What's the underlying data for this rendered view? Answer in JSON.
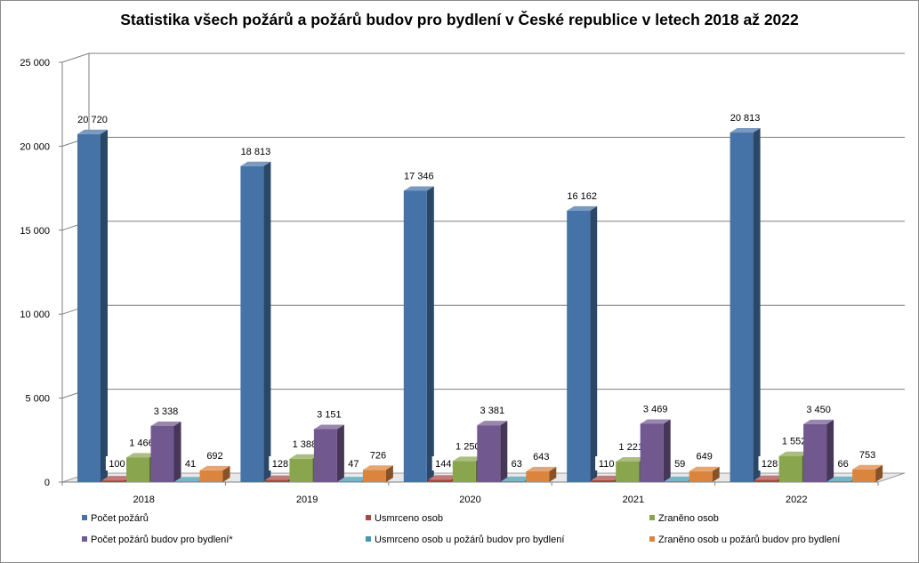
{
  "chart_data": {
    "type": "bar",
    "title": "Statistika všech požárů a požárů budov pro bydlení v České republice v letech 2018 až 2022",
    "xlabel": "",
    "ylabel": "",
    "ylim": [
      0,
      25000
    ],
    "yticks": [
      0,
      5000,
      10000,
      15000,
      20000,
      25000
    ],
    "ytick_labels": [
      "0",
      "5 000",
      "10 000",
      "15 000",
      "20 000",
      "25 000"
    ],
    "categories": [
      "2018",
      "2019",
      "2020",
      "2021",
      "2022"
    ],
    "grid": true,
    "legend_position": "bottom",
    "series": [
      {
        "name": "Počet požárů",
        "color": "#4572a7",
        "values": [
          20720,
          18813,
          17346,
          16162,
          20813
        ],
        "labels": [
          "20 720",
          "18 813",
          "17 346",
          "16 162",
          "20 813"
        ]
      },
      {
        "name": "Usmrceno osob",
        "color": "#aa4643",
        "values": [
          100,
          128,
          144,
          110,
          128
        ],
        "labels": [
          "100",
          "128",
          "144",
          "110",
          "128"
        ]
      },
      {
        "name": "Zraněno osob",
        "color": "#89a54e",
        "values": [
          1466,
          1388,
          1250,
          1221,
          1552
        ],
        "labels": [
          "1 466",
          "1 388",
          "1 250",
          "1 221",
          "1 552"
        ]
      },
      {
        "name": "Počet požárů budov pro bydlení*",
        "color": "#71588f",
        "values": [
          3338,
          3151,
          3381,
          3469,
          3450
        ],
        "labels": [
          "3 338",
          "3 151",
          "3 381",
          "3 469",
          "3 450"
        ]
      },
      {
        "name": "Usmrceno osob u požárů budov pro bydlení",
        "color": "#4198af",
        "values": [
          41,
          47,
          63,
          59,
          66
        ],
        "labels": [
          "41",
          "47",
          "63",
          "59",
          "66"
        ]
      },
      {
        "name": "Zraněno osob u požárů budov pro bydlení",
        "color": "#db843d",
        "values": [
          692,
          726,
          643,
          649,
          753
        ],
        "labels": [
          "692",
          "726",
          "643",
          "649",
          "753"
        ]
      }
    ]
  }
}
